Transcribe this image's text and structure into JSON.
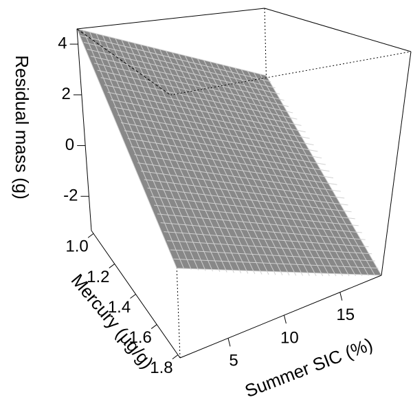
{
  "chart_data": {
    "type": "surface",
    "x": [
      0.7,
      18.7
    ],
    "y": [
      0.98,
      1.82
    ],
    "z": [
      [
        4.6,
        -0.64
      ],
      [
        1.9,
        -3.35
      ]
    ],
    "xlim": [
      0.7,
      18.7
    ],
    "ylim": [
      0.98,
      1.82
    ],
    "zlim": [
      -3.35,
      4.6
    ],
    "xticks": [
      5,
      10,
      15
    ],
    "yticks": [
      {
        "value": 1,
        "label": "1.0"
      },
      1.2,
      1.4,
      1.6,
      1.8
    ],
    "zticks": [
      -2,
      0,
      2,
      4
    ],
    "xlabel": "Summer SIC (%)",
    "ylabel": "Mercury (µg/g)",
    "zlabel": "Residual mass (g)",
    "color": "#888888",
    "mesh_color": "#d0d0d0",
    "mesh": 30
  }
}
